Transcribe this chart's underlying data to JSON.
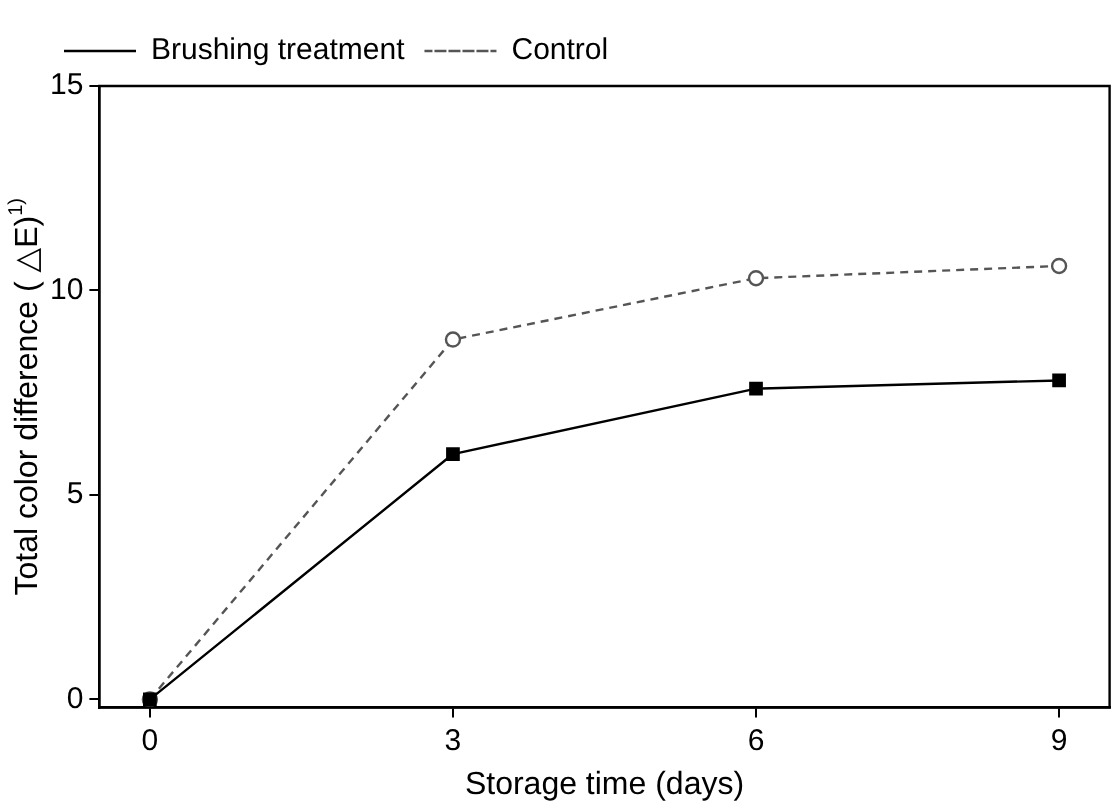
{
  "chart_data": {
    "type": "line",
    "xlabel": "Storage time (days)",
    "ylabel": "Total color difference ( △E)$^{1)}$",
    "x": [
      0,
      3,
      6,
      9
    ],
    "series": [
      {
        "name": "Brushing treatment",
        "color": "#000000",
        "values": [
          0,
          6.0,
          7.6,
          7.8
        ],
        "marker": "square",
        "line_style": "solid"
      },
      {
        "name": "Control",
        "color": "#555555",
        "values": [
          0,
          8.8,
          10.3,
          10.6
        ],
        "marker": "circle",
        "line_style": "dashed"
      }
    ],
    "xlim": [
      -0.5,
      9.5
    ],
    "xticks": [
      0,
      3,
      6,
      9
    ],
    "ylim": [
      -0.2,
      15
    ],
    "yticks": [
      0,
      5,
      10,
      15
    ],
    "grid": false,
    "legend": "top left"
  }
}
